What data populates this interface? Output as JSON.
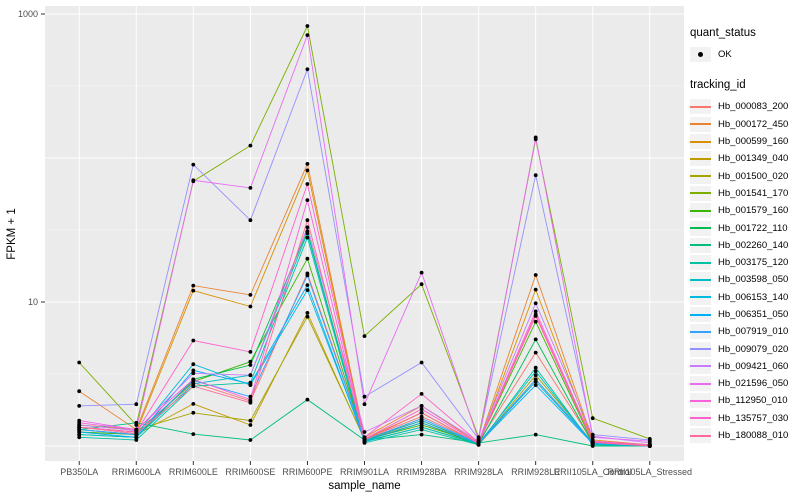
{
  "chart_data": {
    "type": "line",
    "title": "",
    "xlabel": "sample_name",
    "ylabel": "FPKM + 1",
    "y_scale": "log10",
    "ylim": [
      1,
      1100
    ],
    "y_tick_values": [
      10,
      1000
    ],
    "y_tick_labels": [
      "10",
      "1000"
    ],
    "y_major_gridlines": [
      1,
      10,
      100,
      1000
    ],
    "y_minor_gridlines": [
      3.1623,
      31.623,
      316.23
    ],
    "grid": "on",
    "legend_position": "right",
    "categories": [
      "PB350LA",
      "RRIM600LA",
      "RRIM600LE",
      "RRIM600SE",
      "RRIM600PE",
      "RRIM901LA",
      "RRIM928BA",
      "RRIM928LA",
      "RRIM928LE",
      "RRII105LA_Control",
      "RRII105LA_Stressed"
    ],
    "series": [
      {
        "name": "Hb_000083_200",
        "color": "#F8766D",
        "values": [
          1.35,
          1.25,
          2.75,
          2.05,
          15.8,
          1.12,
          1.6,
          1.06,
          4.45,
          1.07,
          1.0
        ]
      },
      {
        "name": "Hb_000172_450",
        "color": "#EA8331",
        "values": [
          2.4,
          1.3,
          13.0,
          11.2,
          91,
          1.15,
          1.9,
          1.05,
          15.4,
          1.1,
          1.02
        ]
      },
      {
        "name": "Hb_000599_160",
        "color": "#D89000",
        "values": [
          1.35,
          1.25,
          12.0,
          9.3,
          82,
          1.12,
          1.7,
          1.04,
          12.2,
          1.08,
          1.02
        ]
      },
      {
        "name": "Hb_001349_040",
        "color": "#C09B00",
        "values": [
          1.3,
          1.2,
          1.96,
          1.4,
          8.4,
          1.1,
          1.45,
          1.02,
          2.9,
          1.05,
          1.0
        ]
      },
      {
        "name": "Hb_001500_020",
        "color": "#A3A500",
        "values": [
          1.4,
          1.3,
          1.7,
          1.5,
          7.9,
          1.12,
          1.5,
          1.03,
          3.1,
          1.06,
          1.02
        ]
      },
      {
        "name": "Hb_001541_170",
        "color": "#7CAE00",
        "values": [
          3.8,
          1.4,
          69,
          122,
          826,
          5.8,
          13.3,
          1.15,
          135,
          1.56,
          1.12
        ]
      },
      {
        "name": "Hb_001579_160",
        "color": "#39B600",
        "values": [
          1.25,
          1.2,
          2.8,
          3.85,
          20,
          1.1,
          1.4,
          1.05,
          7.3,
          1.05,
          1.0
        ]
      },
      {
        "name": "Hb_001722_110",
        "color": "#00BB4E",
        "values": [
          1.2,
          1.15,
          2.9,
          3.65,
          31,
          1.08,
          1.35,
          1.03,
          5.5,
          1.04,
          1.0
        ]
      },
      {
        "name": "Hb_002260_140",
        "color": "#00BF7D",
        "values": [
          1.3,
          1.45,
          1.21,
          1.1,
          2.1,
          1.1,
          1.2,
          1.05,
          1.2,
          1.0,
          1.0
        ]
      },
      {
        "name": "Hb_003175_120",
        "color": "#00C1A3",
        "values": [
          1.15,
          1.1,
          2.6,
          2.75,
          28,
          1.05,
          1.3,
          1.02,
          3.5,
          1.02,
          1.0
        ]
      },
      {
        "name": "Hb_003598_050",
        "color": "#00BFC4",
        "values": [
          1.2,
          1.15,
          2.7,
          3.1,
          30,
          1.07,
          1.35,
          1.04,
          3.3,
          1.03,
          1.0
        ]
      },
      {
        "name": "Hb_006153_140",
        "color": "#00BAE0",
        "values": [
          1.3,
          1.2,
          3.7,
          2.65,
          12.1,
          1.1,
          1.5,
          1.05,
          2.8,
          1.05,
          1.0
        ]
      },
      {
        "name": "Hb_006351_050",
        "color": "#00B0F6",
        "values": [
          1.25,
          1.15,
          3.35,
          2.7,
          13.1,
          1.08,
          1.45,
          1.04,
          2.65,
          1.04,
          1.0
        ]
      },
      {
        "name": "Hb_007919_010",
        "color": "#35A2FF",
        "values": [
          1.3,
          1.2,
          2.85,
          2.2,
          15.3,
          1.1,
          1.55,
          1.05,
          2.9,
          1.06,
          1.0
        ]
      },
      {
        "name": "Hb_009079_020",
        "color": "#9590FF",
        "values": [
          1.9,
          1.95,
          90,
          37,
          413,
          2.2,
          3.8,
          1.12,
          76,
          1.2,
          1.1
        ]
      },
      {
        "name": "Hb_009421_060",
        "color": "#C77CFF",
        "values": [
          1.4,
          1.28,
          3.2,
          3.1,
          33,
          1.25,
          1.9,
          1.08,
          9.8,
          1.17,
          1.05
        ]
      },
      {
        "name": "Hb_021596_050",
        "color": "#E76BF3",
        "values": [
          1.5,
          1.3,
          70,
          62,
          714,
          1.95,
          16,
          1.1,
          139,
          1.15,
          1.08
        ]
      },
      {
        "name": "Hb_112950_010",
        "color": "#FA62DB",
        "values": [
          1.45,
          1.3,
          2.9,
          2.1,
          51,
          1.12,
          1.8,
          1.05,
          8.2,
          1.07,
          1.0
        ]
      },
      {
        "name": "Hb_135757_030",
        "color": "#FF61CC",
        "values": [
          1.35,
          1.25,
          5.4,
          4.5,
          66,
          1.15,
          2.3,
          1.06,
          8.6,
          1.08,
          1.02
        ]
      },
      {
        "name": "Hb_180088_010",
        "color": "#FF6A98",
        "values": [
          1.35,
          1.22,
          2.6,
          2.0,
          37,
          1.1,
          1.7,
          1.04,
          8.0,
          1.06,
          1.0
        ]
      }
    ],
    "legend": {
      "quant_status_title": "quant_status",
      "quant_status_items": [
        {
          "label": "OK",
          "marker": "black-point"
        }
      ],
      "tracking_title": "tracking_id"
    },
    "point_marker": {
      "shape": "dot",
      "color": "#000000",
      "radius": 1.9
    }
  },
  "colors": {
    "page_bg": "#FFFFFF",
    "panel_bg": "#EBEBEB",
    "gridline": "#FFFFFF",
    "tick_mark": "#333333",
    "tick_label": "#4D4D4D",
    "axis_title": "#000000",
    "legend_key_bg": "#F2F2F2"
  }
}
